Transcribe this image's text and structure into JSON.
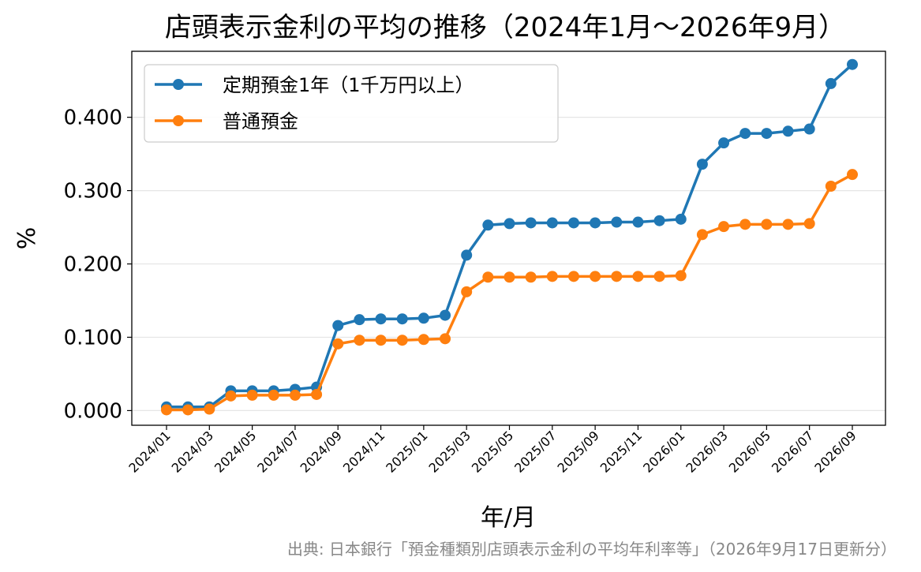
{
  "chart_data": {
    "type": "line",
    "title": "店頭表示金利の平均の推移（2024年1月～2026年9月）",
    "xlabel": "年/月",
    "ylabel": "%",
    "ylim": [
      -0.02,
      0.49
    ],
    "yticks": [
      "0.000",
      "0.100",
      "0.200",
      "0.300",
      "0.400"
    ],
    "ytick_values": [
      0,
      0.1,
      0.2,
      0.3,
      0.4
    ],
    "grid": "horizontal",
    "legend_position": "top-left",
    "x": [
      "2024/01",
      "2024/02",
      "2024/03",
      "2024/04",
      "2024/05",
      "2024/06",
      "2024/07",
      "2024/08",
      "2024/09",
      "2024/10",
      "2024/11",
      "2024/12",
      "2025/01",
      "2025/02",
      "2025/03",
      "2025/04",
      "2025/05",
      "2025/06",
      "2025/07",
      "2025/08",
      "2025/09",
      "2025/10",
      "2025/11",
      "2025/12",
      "2026/01",
      "2026/02",
      "2026/03",
      "2026/04",
      "2026/05",
      "2026/06",
      "2026/07",
      "2026/08",
      "2026/09"
    ],
    "xtick_labels": [
      "2024/01",
      "2024/03",
      "2024/05",
      "2024/07",
      "2024/09",
      "2024/11",
      "2025/01",
      "2025/03",
      "2025/05",
      "2025/07",
      "2025/09",
      "2025/11",
      "2026/01",
      "2026/03",
      "2026/05",
      "2026/07",
      "2026/09"
    ],
    "series": [
      {
        "name": "定期預金1年（1千万円以上）",
        "color": "#1f77b4",
        "values": [
          0.005,
          0.005,
          0.005,
          0.027,
          0.027,
          0.027,
          0.029,
          0.032,
          0.116,
          0.124,
          0.125,
          0.125,
          0.126,
          0.13,
          0.212,
          0.253,
          0.255,
          0.256,
          0.256,
          0.256,
          0.256,
          0.257,
          0.257,
          0.259,
          0.261,
          0.336,
          0.365,
          0.378,
          0.378,
          0.381,
          0.384,
          0.446,
          0.472
        ]
      },
      {
        "name": "普通預金",
        "color": "#ff7f0e",
        "values": [
          0.001,
          0.001,
          0.002,
          0.02,
          0.021,
          0.021,
          0.021,
          0.022,
          0.091,
          0.096,
          0.096,
          0.096,
          0.097,
          0.098,
          0.162,
          0.182,
          0.182,
          0.182,
          0.183,
          0.183,
          0.183,
          0.183,
          0.183,
          0.183,
          0.184,
          0.24,
          0.251,
          0.254,
          0.254,
          0.254,
          0.255,
          0.306,
          0.322
        ]
      }
    ],
    "source": "出典: 日本銀行「預金種類別店頭表示金利の平均年利率等」（2026年9月17日更新分）"
  }
}
